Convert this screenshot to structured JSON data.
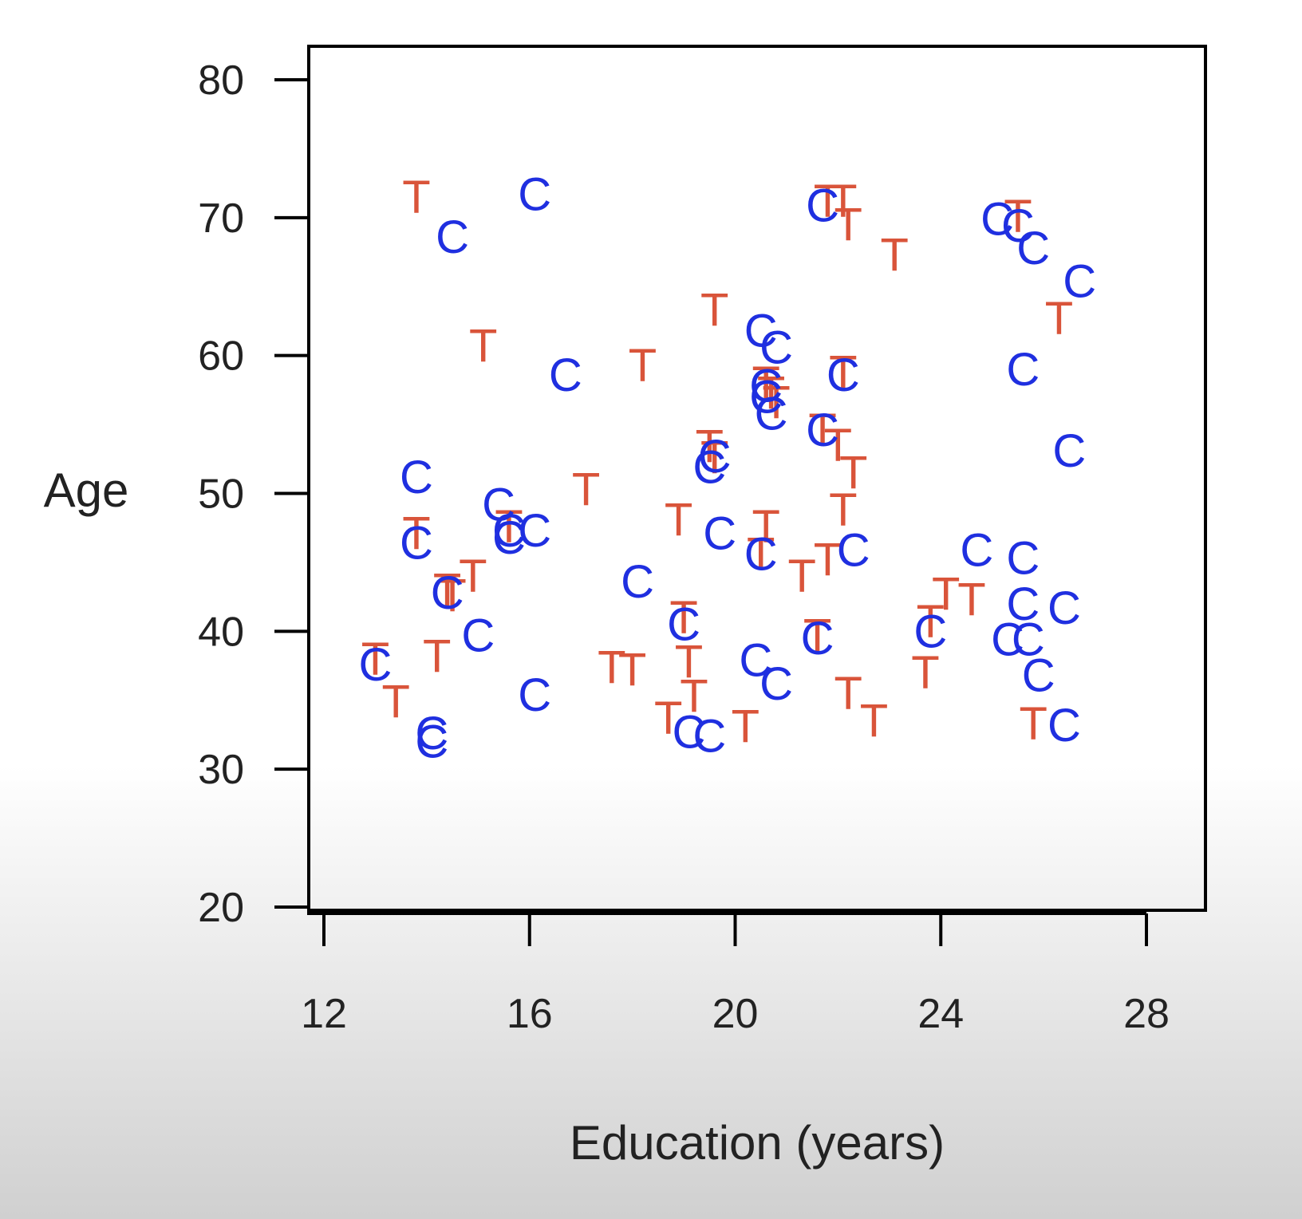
{
  "chart_data": {
    "type": "scatter",
    "title": "",
    "xlabel": "Education (years)",
    "ylabel": "Age",
    "xlim": [
      11.2,
      29.0
    ],
    "ylim": [
      20,
      80
    ],
    "xticks": [
      12,
      16,
      20,
      24,
      28
    ],
    "yticks": [
      20,
      30,
      40,
      50,
      60,
      70,
      80
    ],
    "grid": false,
    "legend": "none",
    "series": [
      {
        "marker": "T",
        "color": "#d9543a",
        "points": [
          [
            13.8,
            71.5
          ],
          [
            15.1,
            60.7
          ],
          [
            18.2,
            59.3
          ],
          [
            19.6,
            63.3
          ],
          [
            21.8,
            71.2
          ],
          [
            22.1,
            71.2
          ],
          [
            22.2,
            69.5
          ],
          [
            23.1,
            67.3
          ],
          [
            25.5,
            70.1
          ],
          [
            26.3,
            62.7
          ],
          [
            22.1,
            58.8
          ],
          [
            20.6,
            58.0
          ],
          [
            20.7,
            57.3
          ],
          [
            20.8,
            56.6
          ],
          [
            21.7,
            54.6
          ],
          [
            22.0,
            53.5
          ],
          [
            22.3,
            51.5
          ],
          [
            22.1,
            48.8
          ],
          [
            19.5,
            53.4
          ],
          [
            19.6,
            52.6
          ],
          [
            17.1,
            50.3
          ],
          [
            15.6,
            47.6
          ],
          [
            13.8,
            47.1
          ],
          [
            18.9,
            48.1
          ],
          [
            20.6,
            47.6
          ],
          [
            20.5,
            45.6
          ],
          [
            21.8,
            45.2
          ],
          [
            21.3,
            44.0
          ],
          [
            14.4,
            43.0
          ],
          [
            14.5,
            42.6
          ],
          [
            14.9,
            44.0
          ],
          [
            19.0,
            41.0
          ],
          [
            21.6,
            39.7
          ],
          [
            24.1,
            42.7
          ],
          [
            24.6,
            42.3
          ],
          [
            23.8,
            40.7
          ],
          [
            13.0,
            38.0
          ],
          [
            14.2,
            38.2
          ],
          [
            17.6,
            37.4
          ],
          [
            18.0,
            37.2
          ],
          [
            19.1,
            37.8
          ],
          [
            19.2,
            35.3
          ],
          [
            18.7,
            33.7
          ],
          [
            20.2,
            33.1
          ],
          [
            13.4,
            34.9
          ],
          [
            22.2,
            35.5
          ],
          [
            22.7,
            33.5
          ],
          [
            23.7,
            37.0
          ],
          [
            25.8,
            33.3
          ]
        ]
      },
      {
        "marker": "C",
        "color": "#1f2fe0",
        "points": [
          [
            14.5,
            68.6
          ],
          [
            16.1,
            71.7
          ],
          [
            16.7,
            58.6
          ],
          [
            21.7,
            70.9
          ],
          [
            25.1,
            69.9
          ],
          [
            25.5,
            69.4
          ],
          [
            25.8,
            67.8
          ],
          [
            26.7,
            65.4
          ],
          [
            25.6,
            59.0
          ],
          [
            20.5,
            61.8
          ],
          [
            20.8,
            60.6
          ],
          [
            22.1,
            58.6
          ],
          [
            20.6,
            57.8
          ],
          [
            20.6,
            57.0
          ],
          [
            20.7,
            55.8
          ],
          [
            21.7,
            54.6
          ],
          [
            26.5,
            53.1
          ],
          [
            19.6,
            52.7
          ],
          [
            19.5,
            51.9
          ],
          [
            13.8,
            51.2
          ],
          [
            15.4,
            49.2
          ],
          [
            15.6,
            47.3
          ],
          [
            15.6,
            46.8
          ],
          [
            16.1,
            47.3
          ],
          [
            13.8,
            46.4
          ],
          [
            19.7,
            47.1
          ],
          [
            20.5,
            45.6
          ],
          [
            22.3,
            45.9
          ],
          [
            24.7,
            45.9
          ],
          [
            25.6,
            45.3
          ],
          [
            18.1,
            43.6
          ],
          [
            14.4,
            42.8
          ],
          [
            25.6,
            42.0
          ],
          [
            26.4,
            41.7
          ],
          [
            19.0,
            40.5
          ],
          [
            15.0,
            39.7
          ],
          [
            21.6,
            39.5
          ],
          [
            23.8,
            40.0
          ],
          [
            25.3,
            39.4
          ],
          [
            25.7,
            39.4
          ],
          [
            25.9,
            36.8
          ],
          [
            13.0,
            37.6
          ],
          [
            20.4,
            37.9
          ],
          [
            20.8,
            36.2
          ],
          [
            16.1,
            35.4
          ],
          [
            14.1,
            32.6
          ],
          [
            14.1,
            32.0
          ],
          [
            19.1,
            32.7
          ],
          [
            19.5,
            32.4
          ],
          [
            26.4,
            33.2
          ]
        ]
      }
    ]
  }
}
